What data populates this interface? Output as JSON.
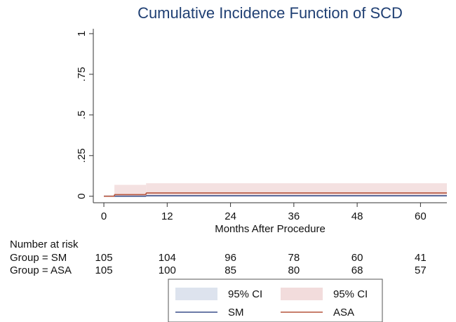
{
  "chart_data": {
    "type": "step",
    "title": "Cumulative Incidence Function of SCD",
    "x_label": "Months After Procedure",
    "xlim": [
      -2,
      65
    ],
    "ylim": [
      -0.04,
      1.03
    ],
    "xticks": [
      0,
      12,
      24,
      36,
      48,
      60
    ],
    "yticks": [
      0,
      {
        "value": 0.25,
        "label": ".25"
      },
      {
        "value": 0.5,
        "label": ".5"
      },
      {
        "value": 0.75,
        "label": ".75"
      },
      1
    ],
    "series": [
      {
        "name": "SM",
        "color": "#3a4f8a",
        "ci_name": "95% CI",
        "ci_color": "#dde3ee",
        "x": [
          0,
          8
        ],
        "values": [
          0,
          0.003
        ],
        "ci_lower": [
          0,
          0
        ],
        "ci_upper": [
          0,
          0.015
        ]
      },
      {
        "name": "ASA",
        "color": "#b5533c",
        "ci_name": "95% CI",
        "ci_color": "#f2dcdc",
        "x": [
          0,
          2,
          8
        ],
        "values": [
          0,
          0.01,
          0.02
        ],
        "ci_lower": [
          0,
          0.005,
          0.006
        ],
        "ci_upper": [
          0,
          0.07,
          0.08
        ]
      }
    ],
    "risk_table": {
      "title": "Number at risk",
      "x": [
        0,
        12,
        24,
        36,
        48,
        60
      ],
      "rows": [
        {
          "label": "Group = SM",
          "values": [
            105,
            104,
            96,
            78,
            60,
            41
          ]
        },
        {
          "label": "Group = ASA",
          "values": [
            105,
            100,
            85,
            80,
            68,
            57
          ]
        }
      ]
    }
  }
}
